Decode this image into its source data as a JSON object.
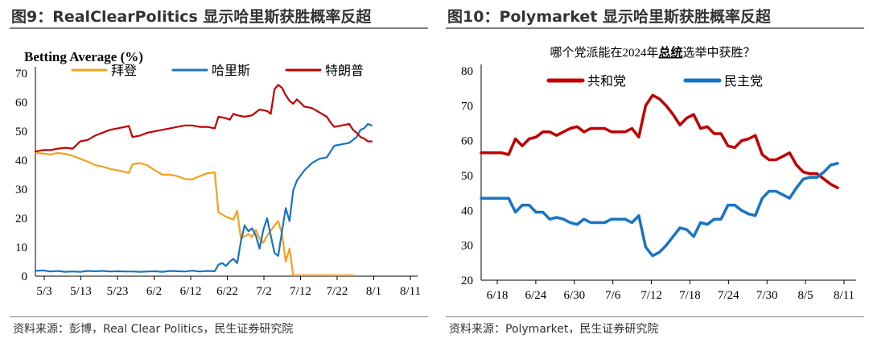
{
  "figures": {
    "left": {
      "title": "图9：RealClearPolitics 显示哈里斯获胜概率反超",
      "source": "资料来源：彭博，Real Clear Politics，民生证券研究院"
    },
    "right": {
      "title": "图10：Polymarket 显示哈里斯获胜概率反超",
      "source": "资料来源：Polymarket，民生证券研究院",
      "question_prefix": "哪个党派能在2024年",
      "question_bold": "总统",
      "question_suffix": "选举中获胜？"
    }
  },
  "colors": {
    "biden": "#F5A01A",
    "harris": "#1874C4",
    "trump": "#C00000",
    "rep": "#C00000",
    "dem": "#1874C4"
  },
  "chart_data": [
    {
      "type": "line",
      "ylabel": "Betting Average (%)",
      "ylim": [
        0,
        70
      ],
      "yticks": [
        "0",
        "10",
        "20",
        "30",
        "40",
        "50",
        "60",
        "70"
      ],
      "x_tick_labels": [
        "5/3",
        "5/13",
        "5/23",
        "6/2",
        "6/12",
        "6/22",
        "7/2",
        "7/12",
        "7/22",
        "8/1",
        "8/11"
      ],
      "xlim_days": [
        0,
        101
      ],
      "legend_position": "top",
      "series": [
        {
          "name": "拜登",
          "color": "#F5A01A",
          "points": [
            [
              0,
              42.5
            ],
            [
              2,
              42.3
            ],
            [
              4,
              42.0
            ],
            [
              6,
              42.5
            ],
            [
              8,
              42.2
            ],
            [
              10,
              41.5
            ],
            [
              12,
              40.5
            ],
            [
              14,
              39.5
            ],
            [
              16,
              38.3
            ],
            [
              18,
              37.8
            ],
            [
              20,
              37.0
            ],
            [
              22,
              36.5
            ],
            [
              24,
              36.0
            ],
            [
              25,
              35.6
            ],
            [
              26,
              38.6
            ],
            [
              28,
              39.0
            ],
            [
              30,
              38.2
            ],
            [
              32,
              36.5
            ],
            [
              34,
              35.0
            ],
            [
              36,
              35.0
            ],
            [
              38,
              34.5
            ],
            [
              40,
              33.5
            ],
            [
              42,
              33.4
            ],
            [
              44,
              34.5
            ],
            [
              46,
              35.5
            ],
            [
              48,
              35.8
            ],
            [
              49,
              22.0
            ],
            [
              51,
              20.5
            ],
            [
              53,
              19.5
            ],
            [
              54,
              22.5
            ],
            [
              55,
              13.0
            ],
            [
              57,
              14.5
            ],
            [
              58,
              13.5
            ],
            [
              59,
              16.0
            ],
            [
              60,
              13.0
            ],
            [
              61,
              11.5
            ],
            [
              62,
              14.0
            ],
            [
              64,
              17.5
            ],
            [
              65,
              19.0
            ],
            [
              66,
              14.5
            ],
            [
              67,
              5.0
            ],
            [
              68,
              9.5
            ],
            [
              69,
              0.3
            ],
            [
              71,
              0.3
            ],
            [
              80,
              0.3
            ],
            [
              85,
              0.3
            ]
          ]
        },
        {
          "name": "哈里斯",
          "color": "#1874C4",
          "points": [
            [
              0,
              1.8
            ],
            [
              2,
              2.0
            ],
            [
              4,
              1.6
            ],
            [
              6,
              1.8
            ],
            [
              8,
              1.5
            ],
            [
              10,
              1.6
            ],
            [
              12,
              1.5
            ],
            [
              14,
              1.8
            ],
            [
              16,
              1.7
            ],
            [
              18,
              1.8
            ],
            [
              20,
              1.6
            ],
            [
              22,
              1.7
            ],
            [
              24,
              1.6
            ],
            [
              26,
              1.6
            ],
            [
              28,
              1.5
            ],
            [
              30,
              1.6
            ],
            [
              32,
              1.7
            ],
            [
              34,
              1.5
            ],
            [
              36,
              1.8
            ],
            [
              38,
              1.7
            ],
            [
              40,
              1.6
            ],
            [
              42,
              1.9
            ],
            [
              44,
              1.6
            ],
            [
              46,
              1.8
            ],
            [
              48,
              1.7
            ],
            [
              49,
              4.0
            ],
            [
              50,
              4.5
            ],
            [
              51,
              3.5
            ],
            [
              52,
              5.0
            ],
            [
              53,
              6.0
            ],
            [
              54,
              4.5
            ],
            [
              55,
              12.0
            ],
            [
              56,
              17.5
            ],
            [
              57,
              15.5
            ],
            [
              58,
              16.5
            ],
            [
              59,
              14.0
            ],
            [
              60,
              9.5
            ],
            [
              61,
              16.0
            ],
            [
              62,
              20.0
            ],
            [
              63,
              14.0
            ],
            [
              64,
              8.0
            ],
            [
              65,
              7.0
            ],
            [
              66,
              15.5
            ],
            [
              67,
              23.5
            ],
            [
              68,
              19.0
            ],
            [
              69,
              29.5
            ],
            [
              70,
              33.0
            ],
            [
              72,
              36.5
            ],
            [
              74,
              39.0
            ],
            [
              76,
              40.5
            ],
            [
              78,
              41.0
            ],
            [
              80,
              45.0
            ],
            [
              82,
              45.5
            ],
            [
              84,
              46.0
            ],
            [
              86,
              48.0
            ],
            [
              87,
              50.5
            ],
            [
              88,
              51.0
            ],
            [
              89,
              52.5
            ],
            [
              90,
              52.0
            ]
          ]
        },
        {
          "name": "特朗普",
          "color": "#C00000",
          "points": [
            [
              0,
              43.0
            ],
            [
              2,
              43.5
            ],
            [
              4,
              43.5
            ],
            [
              6,
              44.0
            ],
            [
              8,
              44.3
            ],
            [
              10,
              44.0
            ],
            [
              12,
              46.5
            ],
            [
              14,
              47.0
            ],
            [
              16,
              48.5
            ],
            [
              18,
              49.5
            ],
            [
              20,
              50.5
            ],
            [
              22,
              51.0
            ],
            [
              24,
              51.5
            ],
            [
              25,
              51.8
            ],
            [
              26,
              48.0
            ],
            [
              28,
              48.5
            ],
            [
              30,
              49.5
            ],
            [
              32,
              50.0
            ],
            [
              34,
              50.5
            ],
            [
              36,
              51.0
            ],
            [
              38,
              51.5
            ],
            [
              40,
              52.0
            ],
            [
              42,
              52.0
            ],
            [
              44,
              51.5
            ],
            [
              46,
              51.5
            ],
            [
              48,
              51.0
            ],
            [
              49,
              55.0
            ],
            [
              51,
              54.5
            ],
            [
              52,
              54.0
            ],
            [
              53,
              56.0
            ],
            [
              54,
              55.5
            ],
            [
              56,
              55.0
            ],
            [
              58,
              55.5
            ],
            [
              60,
              57.5
            ],
            [
              62,
              57.0
            ],
            [
              63,
              56.0
            ],
            [
              64,
              64.5
            ],
            [
              65,
              66.0
            ],
            [
              66,
              65.0
            ],
            [
              67,
              62.5
            ],
            [
              68,
              60.5
            ],
            [
              69,
              59.5
            ],
            [
              70,
              61.0
            ],
            [
              72,
              58.5
            ],
            [
              74,
              58.0
            ],
            [
              76,
              56.5
            ],
            [
              78,
              55.0
            ],
            [
              79,
              53.0
            ],
            [
              80,
              51.5
            ],
            [
              82,
              52.0
            ],
            [
              84,
              52.5
            ],
            [
              85,
              50.5
            ],
            [
              86,
              49.5
            ],
            [
              87,
              48.0
            ],
            [
              88,
              47.5
            ],
            [
              89,
              46.5
            ],
            [
              90,
              46.5
            ]
          ]
        }
      ]
    },
    {
      "type": "line",
      "ylim": [
        20,
        80
      ],
      "yticks": [
        "20",
        "30",
        "40",
        "50",
        "60",
        "70",
        "80"
      ],
      "x_tick_labels": [
        "6/18",
        "6/24",
        "6/30",
        "7/6",
        "7/12",
        "7/18",
        "7/24",
        "7/30",
        "8/5",
        "8/11"
      ],
      "xlim_days": [
        0,
        54
      ],
      "legend_position": "top",
      "series": [
        {
          "name": "共和党",
          "color": "#C00000",
          "points": [
            [
              0,
              56.5
            ],
            [
              2,
              56.5
            ],
            [
              3,
              56.5
            ],
            [
              4,
              56.0
            ],
            [
              5,
              60.5
            ],
            [
              6,
              58.5
            ],
            [
              7,
              60.5
            ],
            [
              8,
              61.0
            ],
            [
              9,
              62.5
            ],
            [
              10,
              62.5
            ],
            [
              11,
              61.5
            ],
            [
              12,
              62.5
            ],
            [
              13,
              63.5
            ],
            [
              14,
              64.0
            ],
            [
              15,
              62.5
            ],
            [
              16,
              63.5
            ],
            [
              17,
              63.5
            ],
            [
              18,
              63.5
            ],
            [
              19,
              62.5
            ],
            [
              20,
              62.5
            ],
            [
              21,
              62.5
            ],
            [
              22,
              63.5
            ],
            [
              23,
              61.0
            ],
            [
              24,
              70.0
            ],
            [
              25,
              73.0
            ],
            [
              26,
              72.0
            ],
            [
              27,
              70.0
            ],
            [
              28,
              67.5
            ],
            [
              29,
              64.5
            ],
            [
              30,
              66.5
            ],
            [
              31,
              67.5
            ],
            [
              32,
              63.5
            ],
            [
              33,
              64.0
            ],
            [
              34,
              62.0
            ],
            [
              35,
              62.0
            ],
            [
              36,
              58.5
            ],
            [
              37,
              58.0
            ],
            [
              38,
              60.0
            ],
            [
              39,
              60.5
            ],
            [
              40,
              61.5
            ],
            [
              41,
              56.0
            ],
            [
              42,
              54.5
            ],
            [
              43,
              54.5
            ],
            [
              44,
              55.5
            ],
            [
              45,
              56.5
            ],
            [
              46,
              53.0
            ],
            [
              47,
              51.0
            ],
            [
              48,
              50.5
            ],
            [
              49,
              50.5
            ],
            [
              50,
              49.0
            ],
            [
              51,
              47.5
            ],
            [
              52,
              46.5
            ]
          ]
        },
        {
          "name": "民主党",
          "color": "#1874C4",
          "points": [
            [
              0,
              43.5
            ],
            [
              2,
              43.5
            ],
            [
              3,
              43.5
            ],
            [
              4,
              43.5
            ],
            [
              5,
              39.5
            ],
            [
              6,
              41.5
            ],
            [
              7,
              41.5
            ],
            [
              8,
              39.5
            ],
            [
              9,
              39.5
            ],
            [
              10,
              37.5
            ],
            [
              11,
              38.0
            ],
            [
              12,
              37.5
            ],
            [
              13,
              36.5
            ],
            [
              14,
              36.0
            ],
            [
              15,
              37.5
            ],
            [
              16,
              36.5
            ],
            [
              17,
              36.5
            ],
            [
              18,
              36.5
            ],
            [
              19,
              37.5
            ],
            [
              20,
              37.5
            ],
            [
              21,
              37.5
            ],
            [
              22,
              36.5
            ],
            [
              23,
              38.5
            ],
            [
              24,
              29.5
            ],
            [
              25,
              27.0
            ],
            [
              26,
              28.0
            ],
            [
              27,
              30.0
            ],
            [
              28,
              32.5
            ],
            [
              29,
              35.0
            ],
            [
              30,
              34.5
            ],
            [
              31,
              32.5
            ],
            [
              32,
              36.5
            ],
            [
              33,
              36.0
            ],
            [
              34,
              37.5
            ],
            [
              35,
              37.5
            ],
            [
              36,
              41.5
            ],
            [
              37,
              41.5
            ],
            [
              38,
              40.0
            ],
            [
              39,
              39.0
            ],
            [
              40,
              38.5
            ],
            [
              41,
              43.5
            ],
            [
              42,
              45.5
            ],
            [
              43,
              45.5
            ],
            [
              44,
              44.5
            ],
            [
              45,
              43.5
            ],
            [
              46,
              46.5
            ],
            [
              47,
              49.0
            ],
            [
              48,
              49.5
            ],
            [
              49,
              49.5
            ],
            [
              50,
              51.0
            ],
            [
              51,
              53.0
            ],
            [
              52,
              53.5
            ]
          ]
        }
      ]
    }
  ]
}
